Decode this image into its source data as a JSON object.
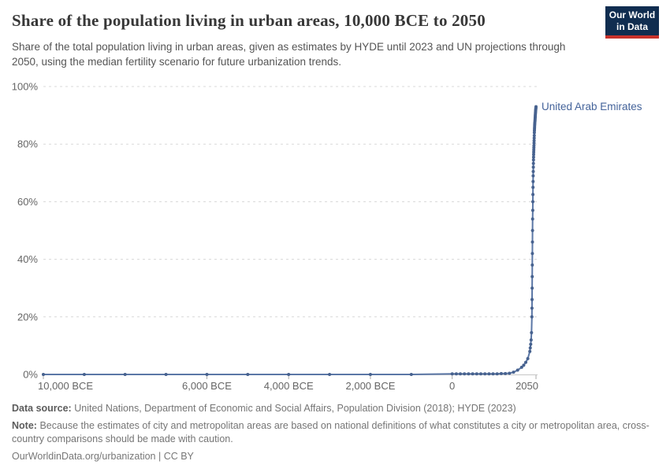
{
  "header": {
    "logo": {
      "line1": "Our World",
      "line2": "in Data",
      "bg_color": "#102d50",
      "accent_color": "#c8322b"
    }
  },
  "chart_data": {
    "type": "line",
    "title": "Share of the population living in urban areas, 10,000 BCE to 2050",
    "subtitle": "Share of the total population living in urban areas, given as estimates by HYDE until 2023 and UN projections through 2050, using the median fertility scenario for future urbanization trends.",
    "entity_label": "United Arab Emirates",
    "xlim": [
      -10000,
      2050
    ],
    "ylim": [
      0,
      100
    ],
    "grid": "horizontal-dashed",
    "legend_position": "end-of-line-label",
    "x_ticks": [
      {
        "value": -10000,
        "label": "10,000 BCE"
      },
      {
        "value": -6000,
        "label": "6,000 BCE"
      },
      {
        "value": -4000,
        "label": "4,000 BCE"
      },
      {
        "value": -2000,
        "label": "2,000 BCE"
      },
      {
        "value": 0,
        "label": "0"
      },
      {
        "value": 2050,
        "label": "2050"
      }
    ],
    "y_ticks": [
      {
        "value": 0,
        "label": "0%"
      },
      {
        "value": 20,
        "label": "20%"
      },
      {
        "value": 40,
        "label": "40%"
      },
      {
        "value": 60,
        "label": "60%"
      },
      {
        "value": 80,
        "label": "80%"
      },
      {
        "value": 100,
        "label": "100%"
      }
    ],
    "series": [
      {
        "name": "United Arab Emirates",
        "line_color": "#5b77a6",
        "dot_color": "#47628f",
        "points": [
          [
            -10000,
            0
          ],
          [
            -9000,
            0
          ],
          [
            -8000,
            0
          ],
          [
            -7000,
            0
          ],
          [
            -6000,
            0
          ],
          [
            -5000,
            0
          ],
          [
            -4000,
            0
          ],
          [
            -3000,
            0
          ],
          [
            -2000,
            0
          ],
          [
            -1000,
            0
          ],
          [
            0,
            0.2
          ],
          [
            100,
            0.2
          ],
          [
            200,
            0.2
          ],
          [
            300,
            0.2
          ],
          [
            400,
            0.2
          ],
          [
            500,
            0.2
          ],
          [
            600,
            0.2
          ],
          [
            700,
            0.2
          ],
          [
            800,
            0.2
          ],
          [
            900,
            0.2
          ],
          [
            1000,
            0.2
          ],
          [
            1100,
            0.2
          ],
          [
            1200,
            0.3
          ],
          [
            1300,
            0.3
          ],
          [
            1400,
            0.4
          ],
          [
            1500,
            0.8
          ],
          [
            1600,
            1.5
          ],
          [
            1700,
            2.5
          ],
          [
            1750,
            3.2
          ],
          [
            1800,
            4.2
          ],
          [
            1850,
            5.5
          ],
          [
            1900,
            8
          ],
          [
            1910,
            9.2
          ],
          [
            1920,
            10.5
          ],
          [
            1930,
            12
          ],
          [
            1940,
            14.5
          ],
          [
            1950,
            20
          ],
          [
            1952,
            23
          ],
          [
            1954,
            26
          ],
          [
            1956,
            30
          ],
          [
            1958,
            34
          ],
          [
            1960,
            38
          ],
          [
            1962,
            42
          ],
          [
            1964,
            46
          ],
          [
            1966,
            50
          ],
          [
            1968,
            54
          ],
          [
            1970,
            57
          ],
          [
            1972,
            60
          ],
          [
            1974,
            62.5
          ],
          [
            1976,
            65
          ],
          [
            1978,
            67
          ],
          [
            1980,
            69
          ],
          [
            1982,
            70.5
          ],
          [
            1984,
            72
          ],
          [
            1986,
            73.3
          ],
          [
            1988,
            74.5
          ],
          [
            1990,
            75.5
          ],
          [
            1992,
            76.4
          ],
          [
            1994,
            77.2
          ],
          [
            1996,
            78
          ],
          [
            1998,
            78.8
          ],
          [
            2000,
            79.5
          ],
          [
            2002,
            80.4
          ],
          [
            2004,
            81.2
          ],
          [
            2006,
            82.1
          ],
          [
            2008,
            83
          ],
          [
            2010,
            84
          ],
          [
            2012,
            84.7
          ],
          [
            2014,
            85.3
          ],
          [
            2016,
            85.9
          ],
          [
            2018,
            86.5
          ],
          [
            2020,
            87
          ],
          [
            2022,
            87.5
          ],
          [
            2024,
            88
          ],
          [
            2026,
            88.5
          ],
          [
            2028,
            89
          ],
          [
            2030,
            89.4
          ],
          [
            2032,
            89.9
          ],
          [
            2034,
            90.3
          ],
          [
            2036,
            90.7
          ],
          [
            2038,
            91.1
          ],
          [
            2040,
            91.5
          ],
          [
            2042,
            91.8
          ],
          [
            2044,
            92.1
          ],
          [
            2046,
            92.4
          ],
          [
            2048,
            92.7
          ],
          [
            2050,
            93
          ]
        ]
      }
    ]
  },
  "footer": {
    "data_source_label": "Data source:",
    "data_source": "United Nations, Department of Economic and Social Affairs, Population Division (2018); HYDE (2023)",
    "note_label": "Note:",
    "note": "Because the estimates of city and metropolitan areas are based on national definitions of what constitutes a city or metropolitan area, cross-country comparisons should be made with caution.",
    "attribution": "OurWorldinData.org/urbanization | CC BY"
  }
}
